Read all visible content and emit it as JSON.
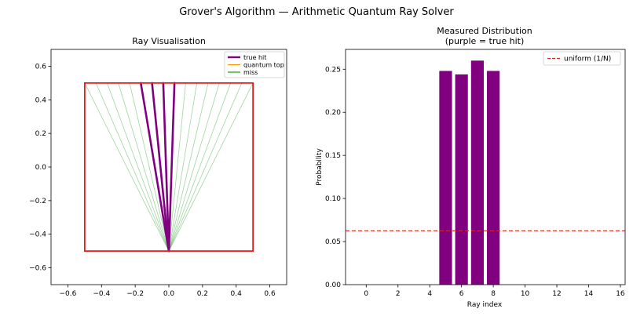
{
  "suptitle": "Grover's Algorithm — Arithmetic Quantum Ray Solver",
  "colors": {
    "true_hit": "#800080",
    "quantum_top": "#ff9900",
    "miss": "#2ca02c",
    "box": "#e31a1c",
    "uniform": "#d62728",
    "bar": "#800080"
  },
  "chart_data": [
    {
      "type": "line",
      "title": "Ray Visualisation",
      "xlabel": "",
      "ylabel": "",
      "xlim": [
        -0.7,
        0.7
      ],
      "ylim": [
        -0.7,
        0.7
      ],
      "xticks": [
        -0.6,
        -0.4,
        -0.2,
        0.0,
        0.2,
        0.4,
        0.6
      ],
      "xtick_labels": [
        "−0.6",
        "−0.4",
        "−0.2",
        "0.0",
        "0.2",
        "0.4",
        "0.6"
      ],
      "yticks": [
        -0.6,
        -0.4,
        -0.2,
        0.0,
        0.2,
        0.4,
        0.6
      ],
      "ytick_labels": [
        "−0.6",
        "−0.4",
        "−0.2",
        "0.0",
        "0.2",
        "0.4",
        "0.6"
      ],
      "origin": [
        0.0,
        -0.5
      ],
      "box": {
        "x": [
          -0.5,
          0.5
        ],
        "y": [
          -0.5,
          0.5
        ]
      },
      "ray_end_x": [
        -0.5,
        -0.4333,
        -0.3667,
        -0.3,
        -0.2333,
        -0.1667,
        -0.1,
        -0.0333,
        0.0333,
        0.1,
        0.1667,
        0.2333,
        0.3,
        0.3667,
        0.4333,
        0.5
      ],
      "ray_end_y": 0.5,
      "hit_indices": [
        5,
        6,
        7,
        8
      ],
      "legend": [
        {
          "label": "true hit",
          "color": "#800080"
        },
        {
          "label": "quantum top",
          "color": "#ff9900"
        },
        {
          "label": "miss",
          "color": "#2ca02c"
        }
      ],
      "legend_position": "upper right"
    },
    {
      "type": "bar",
      "title": "Measured Distribution",
      "subtitle": "(purple = true hit)",
      "xlabel": "Ray index",
      "ylabel": "Probability",
      "xlim": [
        -1.3,
        16.3
      ],
      "ylim": [
        0.0,
        0.273
      ],
      "xticks": [
        0,
        2,
        4,
        6,
        8,
        10,
        12,
        14,
        16
      ],
      "xtick_labels": [
        "0",
        "2",
        "4",
        "6",
        "8",
        "10",
        "12",
        "14",
        "16"
      ],
      "yticks": [
        0.0,
        0.05,
        0.1,
        0.15,
        0.2,
        0.25
      ],
      "ytick_labels": [
        "0.00",
        "0.05",
        "0.10",
        "0.15",
        "0.20",
        "0.25"
      ],
      "categories": [
        5,
        6,
        7,
        8
      ],
      "values": [
        0.248,
        0.244,
        0.26,
        0.248
      ],
      "uniform_line": 0.0625,
      "legend": [
        {
          "label": "uniform (1/N)",
          "color": "#d62728"
        }
      ],
      "legend_position": "upper right"
    }
  ]
}
